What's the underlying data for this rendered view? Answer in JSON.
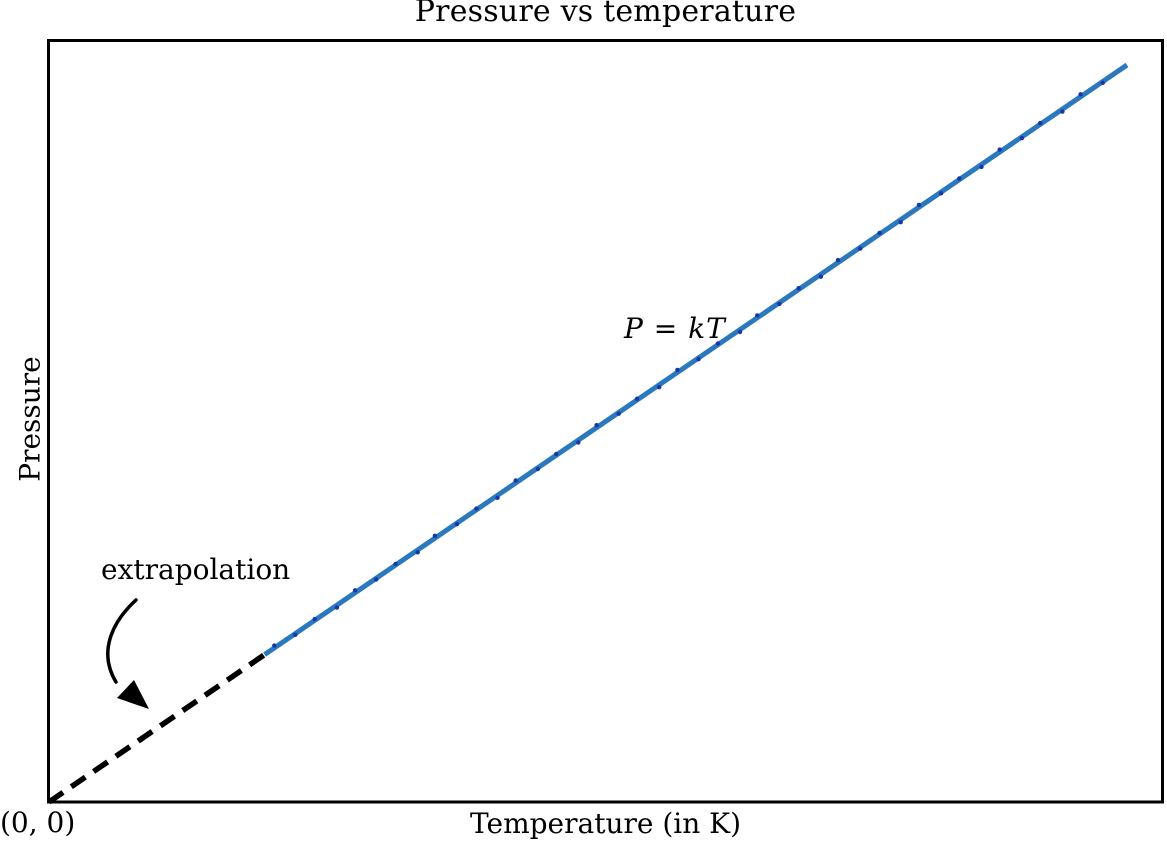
{
  "figure": {
    "title": "Pressure vs temperature",
    "x_axis_label": "Temperature (in K)",
    "y_axis_label": "Pressure",
    "equation_label": "P = kT",
    "annotation_label": "extrapolation",
    "origin_label": "(0, 0)"
  },
  "colors": {
    "background": "#ffffff",
    "axis": "#000000",
    "text": "#000000",
    "line": "#2b79bd",
    "data_dots": "#1a36a8",
    "dashed": "#000000"
  },
  "chart_data": {
    "type": "line",
    "title": "Pressure vs temperature",
    "xlabel": "Temperature (in K)",
    "ylabel": "Pressure",
    "equation": "P = kT",
    "description": "Schematic straight line through the origin (P proportional to T). Solid blue segment carries small dark data dots; a black dashed segment extrapolates the line back to absolute zero at (0, 0). No numeric tick labels; axes are unscaled.",
    "x_range": [
      0,
      1
    ],
    "y_range": [
      0,
      1
    ],
    "grid": false,
    "legend": false,
    "tick_labels": "none (schematic axes)",
    "annotations": [
      {
        "text": "P = kT",
        "position_frac": {
          "x": 0.53,
          "y": 0.63
        }
      },
      {
        "text": "extrapolation",
        "position_frac": {
          "x": 0.08,
          "y": 0.31
        },
        "arrow_points_to": "dashed extrapolated segment"
      },
      {
        "text": "(0, 0)",
        "position": "origin of axes"
      }
    ],
    "series": [
      {
        "name": "P = kT solid line with data points",
        "style": "solid",
        "color_key": "line",
        "x": [
          0.2,
          1.0
        ],
        "y": [
          0.2,
          1.0
        ]
      },
      {
        "name": "extrapolation to (0, 0)",
        "style": "dashed",
        "color_key": "dashed",
        "x": [
          0.0,
          0.2
        ],
        "y": [
          0.0,
          0.2
        ]
      }
    ],
    "data_dots": {
      "description": "t = fraction along full line from origin; off = small perpendicular jitter in px",
      "points": [
        [
          0.21,
          -2
        ],
        [
          0.228,
          1
        ],
        [
          0.247,
          -1
        ],
        [
          0.266,
          2
        ],
        [
          0.285,
          -2
        ],
        [
          0.303,
          1
        ],
        [
          0.322,
          -1
        ],
        [
          0.341,
          2
        ],
        [
          0.359,
          -2
        ],
        [
          0.378,
          1
        ],
        [
          0.397,
          -1
        ],
        [
          0.415,
          2
        ],
        [
          0.434,
          -2
        ],
        [
          0.453,
          1
        ],
        [
          0.471,
          -1
        ],
        [
          0.49,
          2
        ],
        [
          0.509,
          -2
        ],
        [
          0.528,
          1
        ],
        [
          0.546,
          -1
        ],
        [
          0.565,
          2
        ],
        [
          0.584,
          -2
        ],
        [
          0.602,
          1
        ],
        [
          0.621,
          -1
        ],
        [
          0.64,
          2
        ],
        [
          0.658,
          -2
        ],
        [
          0.677,
          1
        ],
        [
          0.696,
          -1
        ],
        [
          0.715,
          2
        ],
        [
          0.733,
          -2
        ],
        [
          0.752,
          1
        ],
        [
          0.771,
          -1
        ],
        [
          0.789,
          2
        ],
        [
          0.808,
          -2
        ],
        [
          0.827,
          1
        ],
        [
          0.845,
          -1
        ],
        [
          0.864,
          2
        ],
        [
          0.883,
          -2
        ],
        [
          0.902,
          1
        ],
        [
          0.92,
          -1
        ],
        [
          0.939,
          2
        ],
        [
          0.958,
          -2
        ],
        [
          0.977,
          1
        ]
      ]
    }
  }
}
